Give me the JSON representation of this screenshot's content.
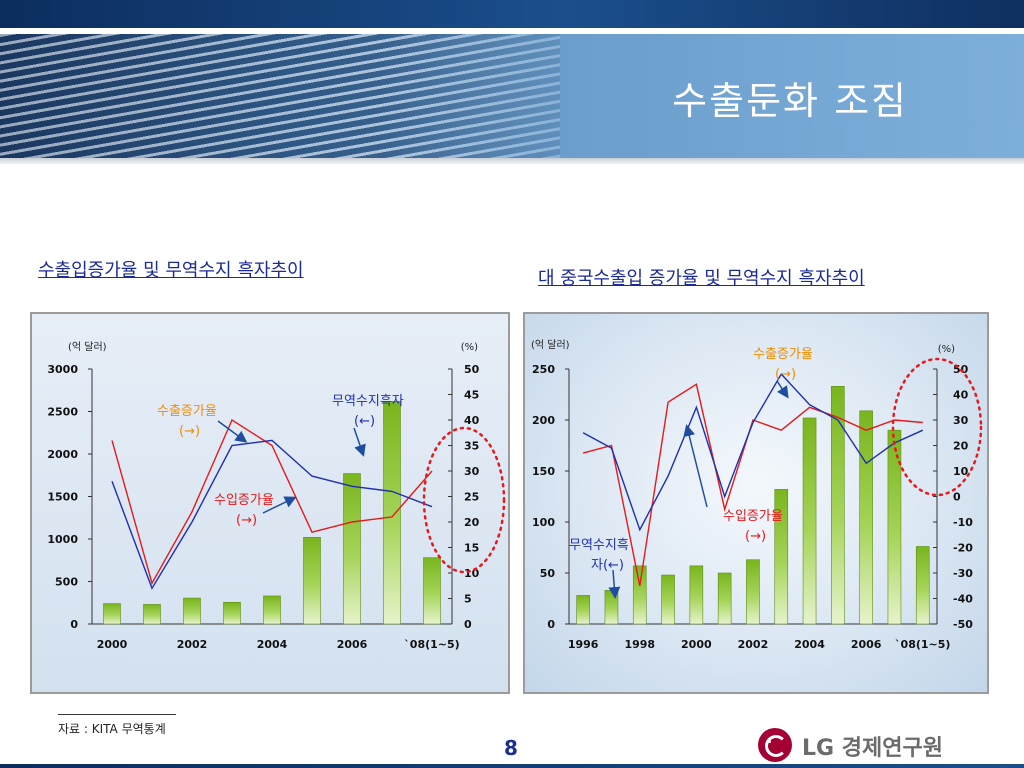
{
  "slide": {
    "title": "수출둔화 조짐",
    "source": "자료 : KITA 무역통계",
    "page": "8",
    "logo_text": "LG 경제연구원"
  },
  "colors": {
    "bar": "#8cc63f",
    "export_line": "#e41a1c",
    "import_line": "#1f2fb0",
    "annotation_export": "#f08c00",
    "annotation_import": "#e41a1c",
    "circle": "#e41a1c"
  },
  "chart_data": [
    {
      "type": "bar+line",
      "title": "수출입증가율 및 무역수지 흑자추이",
      "left_unit": "(억 달러)",
      "right_unit": "(%)",
      "categories": [
        "2000",
        "2001",
        "2002",
        "2003",
        "2004",
        "2005",
        "2006",
        "2007",
        "`08(1~5)"
      ],
      "x_tick_labels": [
        "2000",
        "2002",
        "2004",
        "2006",
        "`08(1~5)"
      ],
      "left_axis": {
        "min": 0,
        "max": 3000,
        "ticks": [
          0,
          500,
          1000,
          1500,
          2000,
          2500,
          3000
        ]
      },
      "right_axis": {
        "min": 0,
        "max": 50,
        "ticks": [
          0,
          5,
          10,
          15,
          20,
          25,
          30,
          35,
          40,
          45,
          50
        ]
      },
      "series": [
        {
          "name": "무역수지흑자",
          "kind": "bar",
          "axis": "left",
          "values": [
            240,
            230,
            305,
            255,
            330,
            1020,
            1770,
            2620,
            780
          ]
        },
        {
          "name": "수출증가율",
          "kind": "line",
          "axis": "right",
          "values": [
            36,
            8,
            22,
            40,
            35,
            18,
            20,
            21,
            30
          ]
        },
        {
          "name": "수입증가율",
          "kind": "line",
          "axis": "right",
          "values": [
            28,
            7,
            20,
            35,
            36,
            29,
            27,
            26,
            23
          ]
        }
      ],
      "annotations": [
        {
          "text": "수출증가율",
          "text2": "(→)"
        },
        {
          "text": "수입증가율",
          "text2": "(→)"
        },
        {
          "text": "무역수지흑자",
          "text2": "(←)"
        }
      ]
    },
    {
      "type": "bar+line",
      "title": "대 중국수출입 증가율 및 무역수지 흑자추이",
      "left_unit": "(억 달러)",
      "right_unit": "(%)",
      "categories": [
        "1996",
        "1997",
        "1998",
        "1999",
        "2000",
        "2001",
        "2002",
        "2003",
        "2004",
        "2005",
        "2006",
        "2007",
        "`08(1~5)"
      ],
      "x_tick_labels": [
        "1996",
        "1998",
        "2000",
        "2002",
        "2004",
        "2006",
        "`08(1~5)"
      ],
      "left_axis": {
        "min": 0,
        "max": 250,
        "ticks": [
          0,
          50,
          100,
          150,
          200,
          250
        ]
      },
      "right_axis": {
        "min": -50,
        "max": 50,
        "ticks": [
          -50,
          -40,
          -30,
          -20,
          -10,
          0,
          10,
          20,
          30,
          40,
          50
        ]
      },
      "series": [
        {
          "name": "무역수지흑자",
          "kind": "bar",
          "axis": "left",
          "values": [
            28,
            33,
            57,
            48,
            57,
            50,
            63,
            132,
            202,
            233,
            209,
            190,
            76
          ]
        },
        {
          "name": "수출증가율",
          "kind": "line",
          "axis": "right",
          "values": [
            17,
            20,
            -35,
            37,
            44,
            -5,
            30,
            26,
            35,
            31,
            26,
            30,
            29
          ]
        },
        {
          "name": "수입증가율",
          "kind": "line",
          "axis": "right",
          "values": [
            25,
            19,
            -13,
            8,
            35,
            0,
            29,
            48,
            36,
            30,
            13,
            21,
            26
          ]
        }
      ],
      "annotations": [
        {
          "text": "수출증가율",
          "text2": "(→)"
        },
        {
          "text": "수입증가율",
          "text2": "(→)"
        },
        {
          "text": "무역수지흑",
          "text2": "자(←)"
        }
      ]
    }
  ]
}
